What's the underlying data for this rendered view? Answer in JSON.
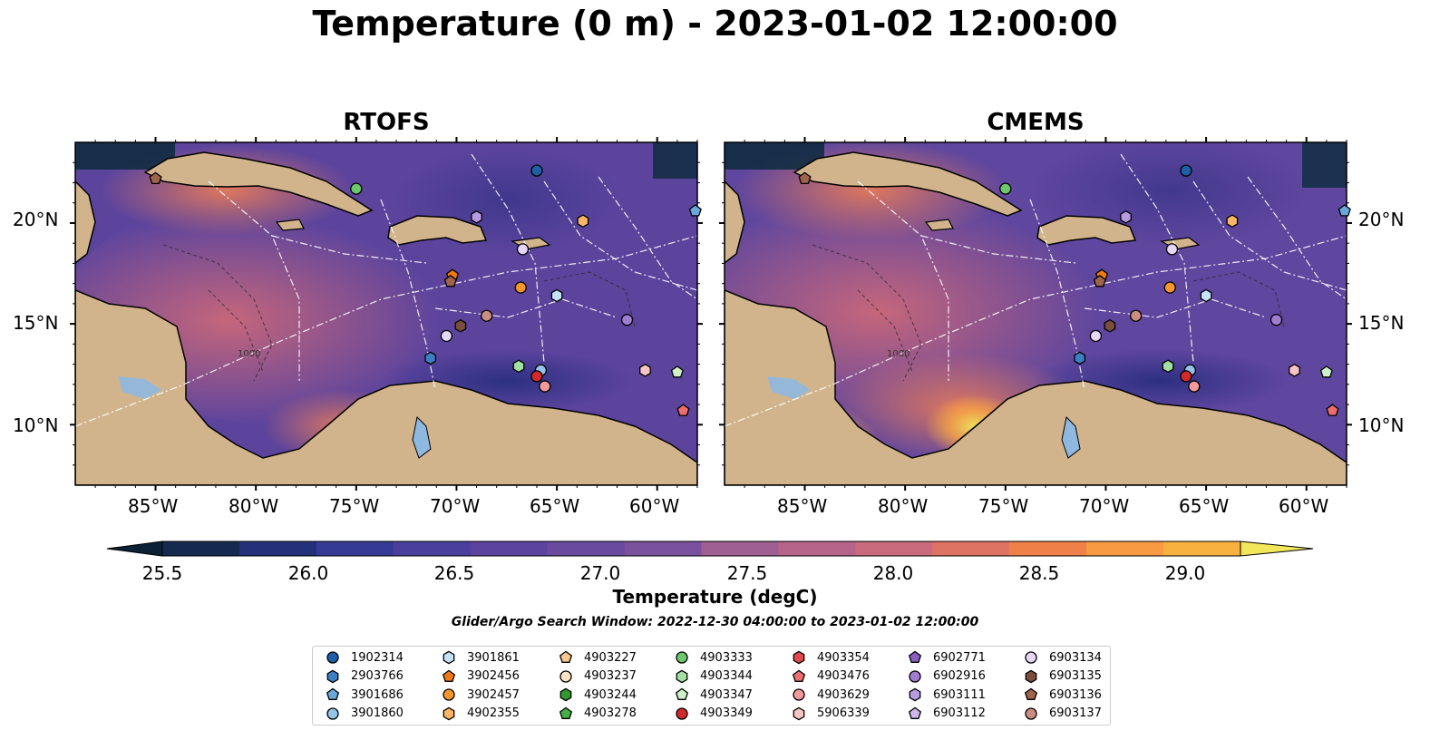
{
  "title": "Temperature (0 m) - 2023-01-02 12:00:00",
  "panels": [
    {
      "title": "RTOFS"
    },
    {
      "title": "CMEMS"
    }
  ],
  "map": {
    "lon_ticks": [
      "85°W",
      "80°W",
      "75°W",
      "70°W",
      "65°W",
      "60°W"
    ],
    "lat_ticks": [
      "20°N",
      "15°N",
      "10°N"
    ],
    "lon_range": [
      -89,
      -58
    ],
    "lat_range": [
      7,
      24
    ],
    "contour_labels": [
      "1000"
    ],
    "colors": {
      "land": "#d2b48c",
      "water_inland": "#8fb8e0",
      "lowest": "#0b2a3c",
      "mid": "#6a4b9e",
      "warm": "#e0736b",
      "hottest": "#f2e65a"
    }
  },
  "colorbar": {
    "label": "Temperature (degC)",
    "ticks": [
      "25.5",
      "26.0",
      "26.5",
      "27.0",
      "27.5",
      "28.0",
      "28.5",
      "29.0"
    ],
    "min": 25.5,
    "max": 29.0,
    "colors": [
      "#0a2233",
      "#162a50",
      "#24307a",
      "#353a95",
      "#4b3f9e",
      "#5c439f",
      "#6a4a9e",
      "#7a519c",
      "#8a5899",
      "#a05f92",
      "#b66489",
      "#c96b7d",
      "#de7364",
      "#ef8148",
      "#f79a42",
      "#f8b13f",
      "#f6cb46",
      "#f2e65a"
    ]
  },
  "search_window": "Glider/Argo Search Window: 2022-12-30 04:00:00 to 2023-01-02 12:00:00",
  "legend": [
    {
      "id": "1902314",
      "marker": "circle",
      "color": "#1f5fa8"
    },
    {
      "id": "2903766",
      "marker": "hexagon",
      "color": "#3d7fc4"
    },
    {
      "id": "3901686",
      "marker": "pentagon",
      "color": "#6aa8dc"
    },
    {
      "id": "3901860",
      "marker": "circle",
      "color": "#96c3ea"
    },
    {
      "id": "3901861",
      "marker": "hexagon",
      "color": "#c5e3f7"
    },
    {
      "id": "3902456",
      "marker": "pentagon",
      "color": "#f07a10"
    },
    {
      "id": "3902457",
      "marker": "circle",
      "color": "#f7962a"
    },
    {
      "id": "4902355",
      "marker": "hexagon",
      "color": "#fbb565"
    },
    {
      "id": "4903227",
      "marker": "pentagon",
      "color": "#fcc88e"
    },
    {
      "id": "4903237",
      "marker": "circle",
      "color": "#fde3c4"
    },
    {
      "id": "4903244",
      "marker": "hexagon",
      "color": "#2e9a2e"
    },
    {
      "id": "4903278",
      "marker": "pentagon",
      "color": "#45b045"
    },
    {
      "id": "4903333",
      "marker": "circle",
      "color": "#6cc86c"
    },
    {
      "id": "4903344",
      "marker": "hexagon",
      "color": "#a2dfa0"
    },
    {
      "id": "4903347",
      "marker": "pentagon",
      "color": "#cdf2c8"
    },
    {
      "id": "4903349",
      "marker": "circle",
      "color": "#d22a2a"
    },
    {
      "id": "4903354",
      "marker": "hexagon",
      "color": "#e04a4a"
    },
    {
      "id": "4903476",
      "marker": "pentagon",
      "color": "#ee6e6e"
    },
    {
      "id": "4903629",
      "marker": "circle",
      "color": "#f49a9a"
    },
    {
      "id": "5906339",
      "marker": "hexagon",
      "color": "#f9c4c4"
    },
    {
      "id": "6902771",
      "marker": "pentagon",
      "color": "#8a5fc0"
    },
    {
      "id": "6902916",
      "marker": "circle",
      "color": "#a07dd0"
    },
    {
      "id": "6903111",
      "marker": "hexagon",
      "color": "#b89ae0"
    },
    {
      "id": "6903112",
      "marker": "pentagon",
      "color": "#cdb6ec"
    },
    {
      "id": "6903134",
      "marker": "circle",
      "color": "#e6d6f7"
    },
    {
      "id": "6903135",
      "marker": "hexagon",
      "color": "#7a4e3c"
    },
    {
      "id": "6903136",
      "marker": "pentagon",
      "color": "#a0634c"
    },
    {
      "id": "6903137",
      "marker": "circle",
      "color": "#c98e80"
    }
  ],
  "floats": [
    {
      "id": "6903136",
      "lon": -85.0,
      "lat": 22.2
    },
    {
      "id": "1902314",
      "lon": -66.0,
      "lat": 22.6
    },
    {
      "id": "4903333",
      "lon": -75.0,
      "lat": 21.7
    },
    {
      "id": "6903111",
      "lon": -69.0,
      "lat": 20.3
    },
    {
      "id": "4902355",
      "lon": -63.7,
      "lat": 20.1
    },
    {
      "id": "6903134",
      "lon": -66.7,
      "lat": 18.7
    },
    {
      "id": "3902456",
      "lon": -70.2,
      "lat": 17.4
    },
    {
      "id": "6903136",
      "lon": -70.3,
      "lat": 17.1
    },
    {
      "id": "3902457",
      "lon": -66.8,
      "lat": 16.8
    },
    {
      "id": "3901861",
      "lon": -65.0,
      "lat": 16.4
    },
    {
      "id": "6902916",
      "lon": -61.5,
      "lat": 15.2
    },
    {
      "id": "6903137",
      "lon": -68.5,
      "lat": 15.4
    },
    {
      "id": "6903135",
      "lon": -69.8,
      "lat": 14.9
    },
    {
      "id": "6903134",
      "lon": -70.5,
      "lat": 14.4
    },
    {
      "id": "2903766",
      "lon": -71.3,
      "lat": 13.3
    },
    {
      "id": "4903344",
      "lon": -66.9,
      "lat": 12.9
    },
    {
      "id": "3901860",
      "lon": -65.8,
      "lat": 12.7
    },
    {
      "id": "4903349",
      "lon": -66.0,
      "lat": 12.4
    },
    {
      "id": "4903629",
      "lon": -65.6,
      "lat": 11.9
    },
    {
      "id": "5906339",
      "lon": -60.6,
      "lat": 12.7
    },
    {
      "id": "4903347",
      "lon": -59.0,
      "lat": 12.6
    },
    {
      "id": "4903476",
      "lon": -58.7,
      "lat": 10.7
    },
    {
      "id": "3901686",
      "lon": -58.1,
      "lat": 20.6
    }
  ]
}
